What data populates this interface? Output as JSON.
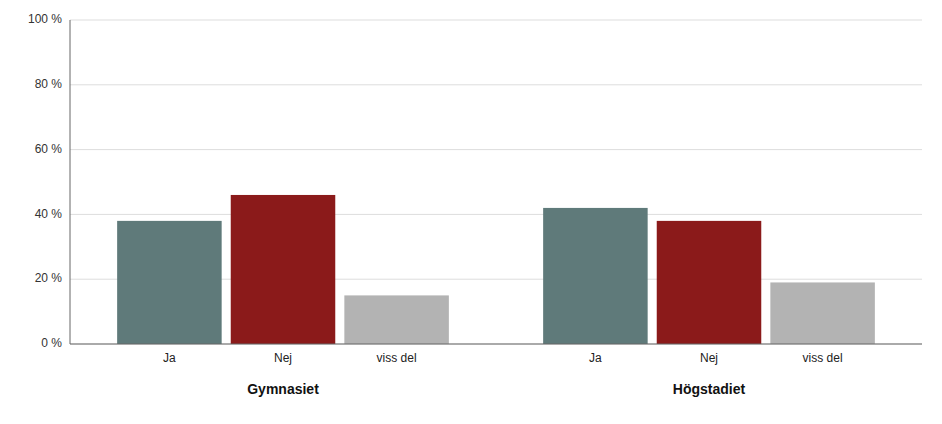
{
  "chart_data": {
    "type": "bar",
    "categories": [
      "Gymnasiet",
      "Högstadiet"
    ],
    "series": [
      {
        "name": "Ja",
        "color": "#5f7a7a",
        "values": [
          38,
          42
        ]
      },
      {
        "name": "Nej",
        "color": "#8b1a1a",
        "values": [
          46,
          38
        ]
      },
      {
        "name": "viss del",
        "color": "#b3b3b3",
        "values": [
          15,
          19
        ]
      }
    ],
    "ylim": [
      0,
      100
    ],
    "yticks": [
      {
        "value": 0,
        "label": "0 %"
      },
      {
        "value": 20,
        "label": "20 %"
      },
      {
        "value": 40,
        "label": "40 %"
      },
      {
        "value": 60,
        "label": "60 %"
      },
      {
        "value": 80,
        "label": "80 %"
      },
      {
        "value": 100,
        "label": "100 %"
      }
    ],
    "grid": true
  }
}
